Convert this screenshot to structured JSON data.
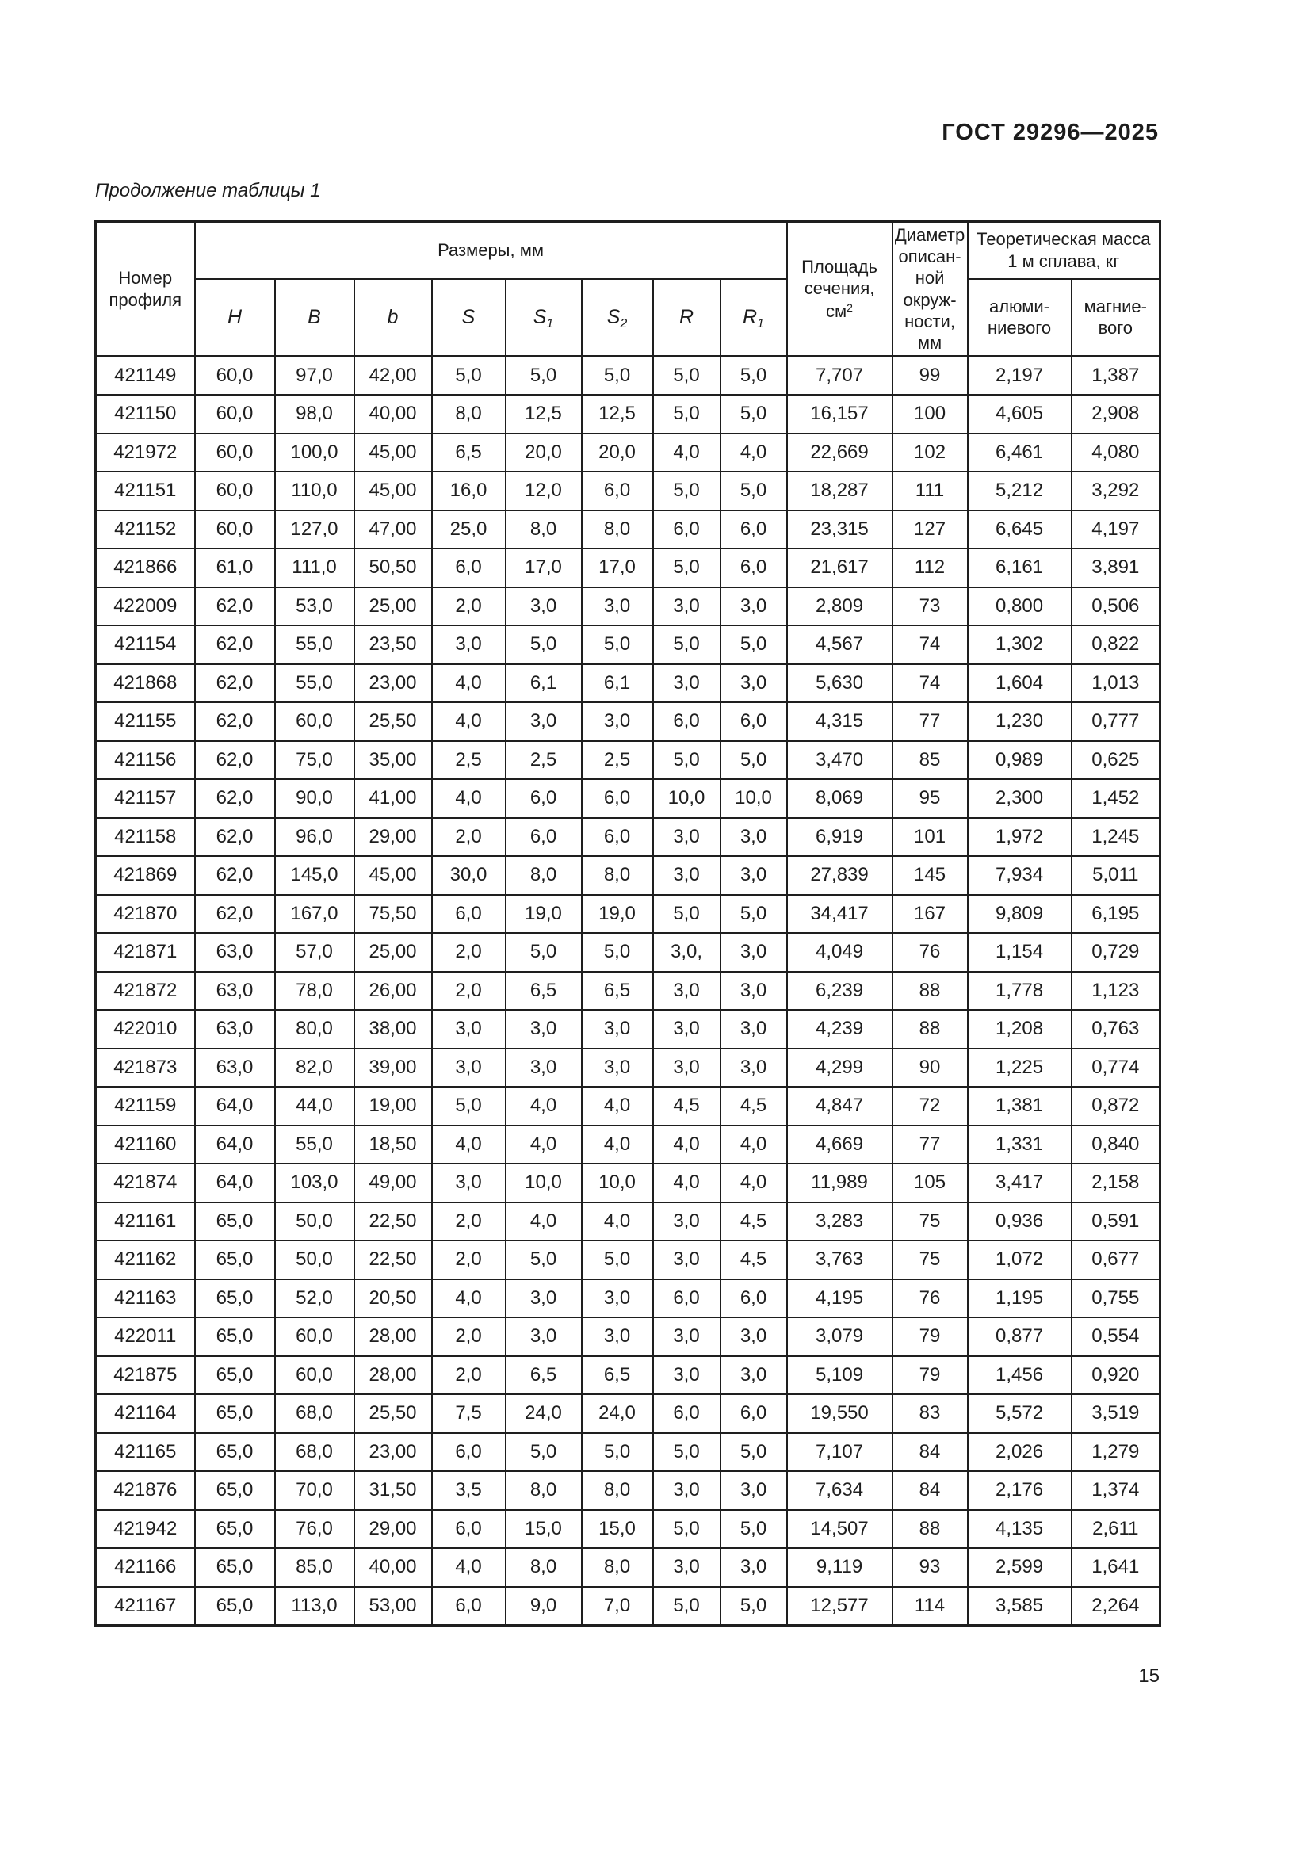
{
  "page": {
    "doc_code": "ГОСТ 29296—2025",
    "caption": "Продолжение таблицы 1",
    "page_number": "15"
  },
  "table": {
    "header": {
      "profile": "Номер\nпрофиля",
      "dimensions_group": "Размеры, мм",
      "dims": [
        {
          "base": "H"
        },
        {
          "base": "B"
        },
        {
          "base": "b"
        },
        {
          "base": "S"
        },
        {
          "base": "S",
          "sub": "1"
        },
        {
          "base": "S",
          "sub": "2"
        },
        {
          "base": "R"
        },
        {
          "base": "R",
          "sub": "1"
        }
      ],
      "area_lines": "Площадь\nсечения,",
      "area_unit_base": "см",
      "area_unit_sup": "2",
      "diameter": "Диаметр\nописан-\nной\nокруж-\nности,\nмм",
      "mass_group": "Теоретическая масса\n1 м сплава, кг",
      "mass_al": "алюми-\nниевого",
      "mass_mg": "магние-\nвого"
    },
    "rows": [
      [
        "421149",
        "60,0",
        "97,0",
        "42,00",
        "5,0",
        "5,0",
        "5,0",
        "5,0",
        "5,0",
        "7,707",
        "99",
        "2,197",
        "1,387"
      ],
      [
        "421150",
        "60,0",
        "98,0",
        "40,00",
        "8,0",
        "12,5",
        "12,5",
        "5,0",
        "5,0",
        "16,157",
        "100",
        "4,605",
        "2,908"
      ],
      [
        "421972",
        "60,0",
        "100,0",
        "45,00",
        "6,5",
        "20,0",
        "20,0",
        "4,0",
        "4,0",
        "22,669",
        "102",
        "6,461",
        "4,080"
      ],
      [
        "421151",
        "60,0",
        "110,0",
        "45,00",
        "16,0",
        "12,0",
        "6,0",
        "5,0",
        "5,0",
        "18,287",
        "111",
        "5,212",
        "3,292"
      ],
      [
        "421152",
        "60,0",
        "127,0",
        "47,00",
        "25,0",
        "8,0",
        "8,0",
        "6,0",
        "6,0",
        "23,315",
        "127",
        "6,645",
        "4,197"
      ],
      [
        "421866",
        "61,0",
        "111,0",
        "50,50",
        "6,0",
        "17,0",
        "17,0",
        "5,0",
        "6,0",
        "21,617",
        "112",
        "6,161",
        "3,891"
      ],
      [
        "422009",
        "62,0",
        "53,0",
        "25,00",
        "2,0",
        "3,0",
        "3,0",
        "3,0",
        "3,0",
        "2,809",
        "73",
        "0,800",
        "0,506"
      ],
      [
        "421154",
        "62,0",
        "55,0",
        "23,50",
        "3,0",
        "5,0",
        "5,0",
        "5,0",
        "5,0",
        "4,567",
        "74",
        "1,302",
        "0,822"
      ],
      [
        "421868",
        "62,0",
        "55,0",
        "23,00",
        "4,0",
        "6,1",
        "6,1",
        "3,0",
        "3,0",
        "5,630",
        "74",
        "1,604",
        "1,013"
      ],
      [
        "421155",
        "62,0",
        "60,0",
        "25,50",
        "4,0",
        "3,0",
        "3,0",
        "6,0",
        "6,0",
        "4,315",
        "77",
        "1,230",
        "0,777"
      ],
      [
        "421156",
        "62,0",
        "75,0",
        "35,00",
        "2,5",
        "2,5",
        "2,5",
        "5,0",
        "5,0",
        "3,470",
        "85",
        "0,989",
        "0,625"
      ],
      [
        "421157",
        "62,0",
        "90,0",
        "41,00",
        "4,0",
        "6,0",
        "6,0",
        "10,0",
        "10,0",
        "8,069",
        "95",
        "2,300",
        "1,452"
      ],
      [
        "421158",
        "62,0",
        "96,0",
        "29,00",
        "2,0",
        "6,0",
        "6,0",
        "3,0",
        "3,0",
        "6,919",
        "101",
        "1,972",
        "1,245"
      ],
      [
        "421869",
        "62,0",
        "145,0",
        "45,00",
        "30,0",
        "8,0",
        "8,0",
        "3,0",
        "3,0",
        "27,839",
        "145",
        "7,934",
        "5,011"
      ],
      [
        "421870",
        "62,0",
        "167,0",
        "75,50",
        "6,0",
        "19,0",
        "19,0",
        "5,0",
        "5,0",
        "34,417",
        "167",
        "9,809",
        "6,195"
      ],
      [
        "421871",
        "63,0",
        "57,0",
        "25,00",
        "2,0",
        "5,0",
        "5,0",
        "3,0,",
        "3,0",
        "4,049",
        "76",
        "1,154",
        "0,729"
      ],
      [
        "421872",
        "63,0",
        "78,0",
        "26,00",
        "2,0",
        "6,5",
        "6,5",
        "3,0",
        "3,0",
        "6,239",
        "88",
        "1,778",
        "1,123"
      ],
      [
        "422010",
        "63,0",
        "80,0",
        "38,00",
        "3,0",
        "3,0",
        "3,0",
        "3,0",
        "3,0",
        "4,239",
        "88",
        "1,208",
        "0,763"
      ],
      [
        "421873",
        "63,0",
        "82,0",
        "39,00",
        "3,0",
        "3,0",
        "3,0",
        "3,0",
        "3,0",
        "4,299",
        "90",
        "1,225",
        "0,774"
      ],
      [
        "421159",
        "64,0",
        "44,0",
        "19,00",
        "5,0",
        "4,0",
        "4,0",
        "4,5",
        "4,5",
        "4,847",
        "72",
        "1,381",
        "0,872"
      ],
      [
        "421160",
        "64,0",
        "55,0",
        "18,50",
        "4,0",
        "4,0",
        "4,0",
        "4,0",
        "4,0",
        "4,669",
        "77",
        "1,331",
        "0,840"
      ],
      [
        "421874",
        "64,0",
        "103,0",
        "49,00",
        "3,0",
        "10,0",
        "10,0",
        "4,0",
        "4,0",
        "11,989",
        "105",
        "3,417",
        "2,158"
      ],
      [
        "421161",
        "65,0",
        "50,0",
        "22,50",
        "2,0",
        "4,0",
        "4,0",
        "3,0",
        "4,5",
        "3,283",
        "75",
        "0,936",
        "0,591"
      ],
      [
        "421162",
        "65,0",
        "50,0",
        "22,50",
        "2,0",
        "5,0",
        "5,0",
        "3,0",
        "4,5",
        "3,763",
        "75",
        "1,072",
        "0,677"
      ],
      [
        "421163",
        "65,0",
        "52,0",
        "20,50",
        "4,0",
        "3,0",
        "3,0",
        "6,0",
        "6,0",
        "4,195",
        "76",
        "1,195",
        "0,755"
      ],
      [
        "422011",
        "65,0",
        "60,0",
        "28,00",
        "2,0",
        "3,0",
        "3,0",
        "3,0",
        "3,0",
        "3,079",
        "79",
        "0,877",
        "0,554"
      ],
      [
        "421875",
        "65,0",
        "60,0",
        "28,00",
        "2,0",
        "6,5",
        "6,5",
        "3,0",
        "3,0",
        "5,109",
        "79",
        "1,456",
        "0,920"
      ],
      [
        "421164",
        "65,0",
        "68,0",
        "25,50",
        "7,5",
        "24,0",
        "24,0",
        "6,0",
        "6,0",
        "19,550",
        "83",
        "5,572",
        "3,519"
      ],
      [
        "421165",
        "65,0",
        "68,0",
        "23,00",
        "6,0",
        "5,0",
        "5,0",
        "5,0",
        "5,0",
        "7,107",
        "84",
        "2,026",
        "1,279"
      ],
      [
        "421876",
        "65,0",
        "70,0",
        "31,50",
        "3,5",
        "8,0",
        "8,0",
        "3,0",
        "3,0",
        "7,634",
        "84",
        "2,176",
        "1,374"
      ],
      [
        "421942",
        "65,0",
        "76,0",
        "29,00",
        "6,0",
        "15,0",
        "15,0",
        "5,0",
        "5,0",
        "14,507",
        "88",
        "4,135",
        "2,611"
      ],
      [
        "421166",
        "65,0",
        "85,0",
        "40,00",
        "4,0",
        "8,0",
        "8,0",
        "3,0",
        "3,0",
        "9,119",
        "93",
        "2,599",
        "1,641"
      ],
      [
        "421167",
        "65,0",
        "113,0",
        "53,00",
        "6,0",
        "9,0",
        "7,0",
        "5,0",
        "5,0",
        "12,577",
        "114",
        "3,585",
        "2,264"
      ]
    ]
  }
}
